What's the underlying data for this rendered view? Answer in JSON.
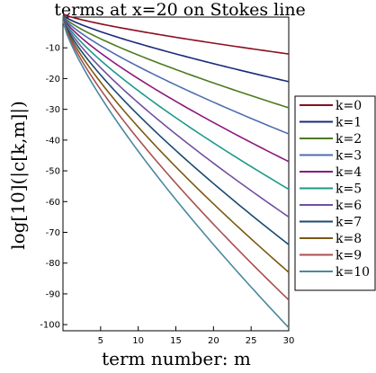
{
  "chart_data": {
    "type": "line",
    "title": "terms at  x=20 on Stokes line",
    "xlabel": "term number: m",
    "ylabel": "log[10](|c[k,m]|)",
    "xlim": [
      0,
      30
    ],
    "ylim": [
      -102,
      0
    ],
    "xticks": [
      5,
      10,
      15,
      20,
      25,
      30
    ],
    "yticks": [
      -10,
      -20,
      -30,
      -40,
      -50,
      -60,
      -70,
      -80,
      -90,
      -100
    ],
    "grid": false,
    "legend_position": "right",
    "x_start": 0,
    "series": [
      {
        "name": "k=0",
        "start": 1.0,
        "end": -12.0,
        "color": "#8b0d1e"
      },
      {
        "name": "k=1",
        "start": 0.6,
        "end": -21.0,
        "color": "#1a2a7a"
      },
      {
        "name": "k=2",
        "start": 0.3,
        "end": -29.5,
        "color": "#4c7a1e"
      },
      {
        "name": "k=3",
        "start": 0.1,
        "end": -38.0,
        "color": "#4f6db0"
      },
      {
        "name": "k=4",
        "start": -0.1,
        "end": -47.0,
        "color": "#8a1a7a"
      },
      {
        "name": "k=5",
        "start": -0.3,
        "end": -56.0,
        "color": "#1a9a8a"
      },
      {
        "name": "k=6",
        "start": -0.5,
        "end": -65.0,
        "color": "#7050a0"
      },
      {
        "name": "k=7",
        "start": -0.7,
        "end": -74.0,
        "color": "#1a4a70"
      },
      {
        "name": "k=8",
        "start": -0.9,
        "end": -83.0,
        "color": "#7a5a10"
      },
      {
        "name": "k=9",
        "start": -1.1,
        "end": -92.0,
        "color": "#a85050"
      },
      {
        "name": "k=10",
        "start": -1.3,
        "end": -101.0,
        "color": "#4a88a0"
      }
    ]
  }
}
